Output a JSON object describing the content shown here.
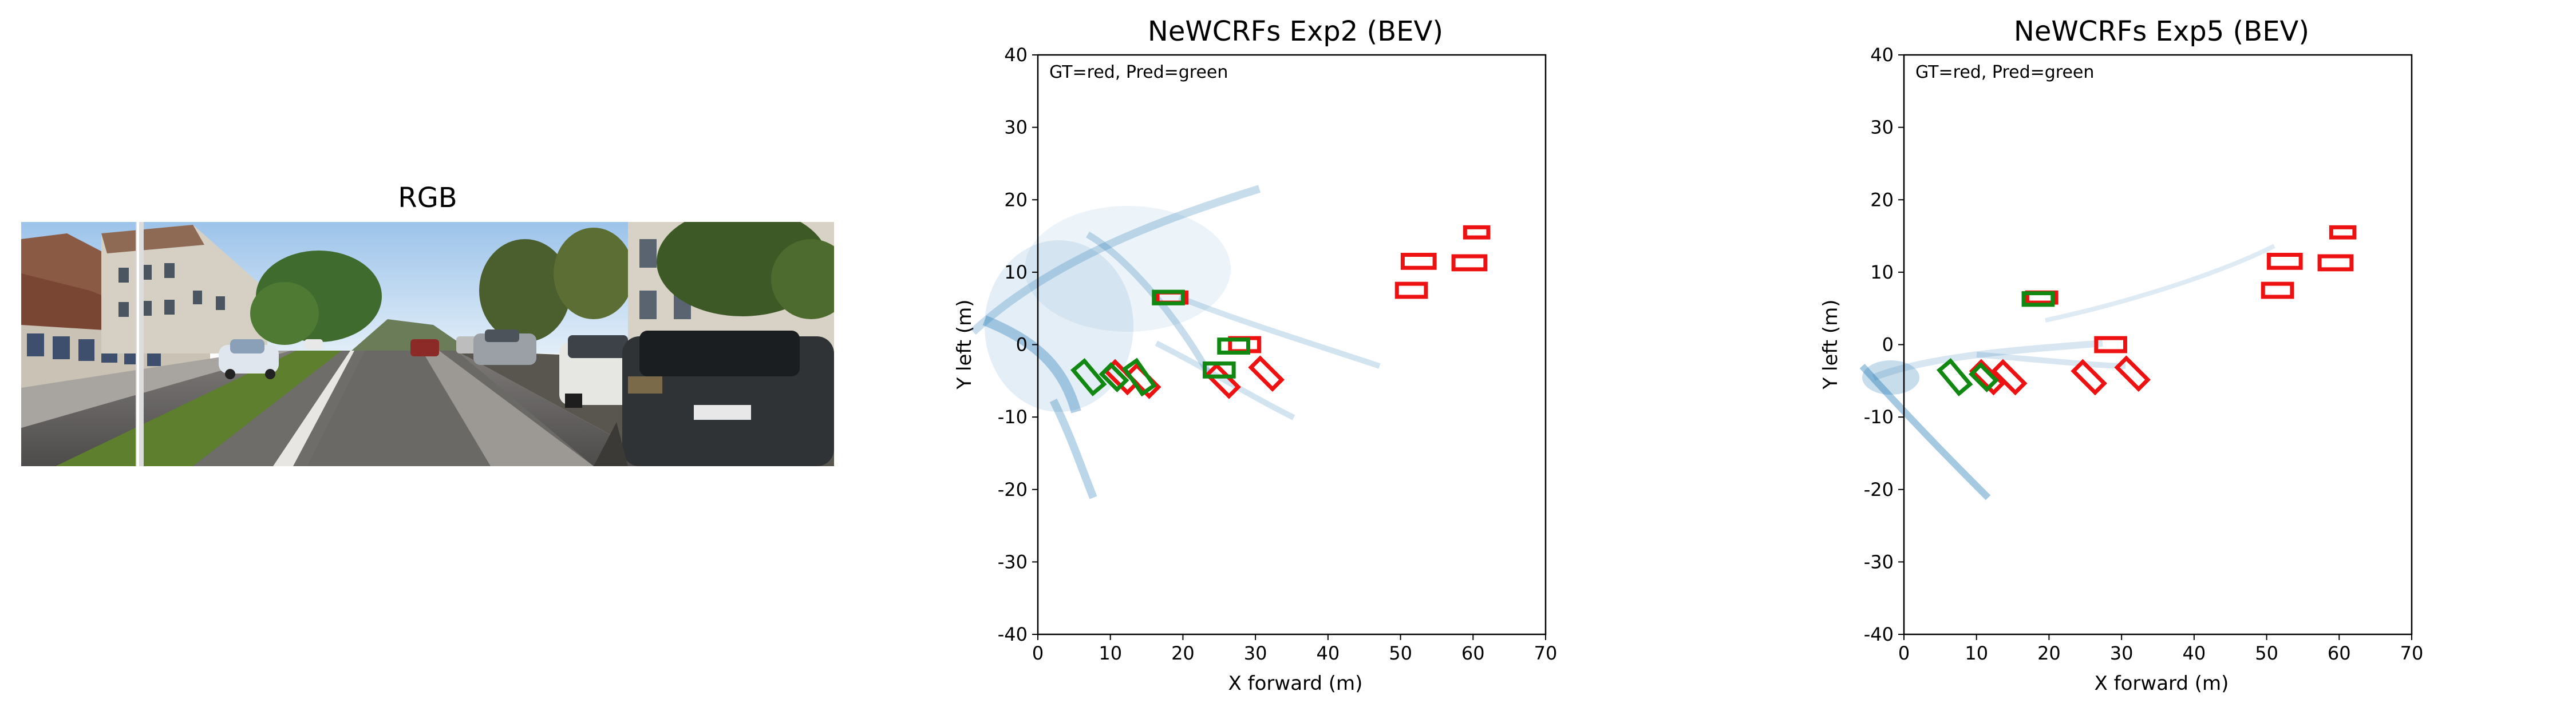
{
  "rgb_panel": {
    "title": "RGB"
  },
  "chart_data": [
    {
      "type": "scatter",
      "title": "NeWCRFs Exp2 (BEV)",
      "xlabel": "X forward (m)",
      "ylabel": "Y left (m)",
      "xlim": [
        0,
        70
      ],
      "ylim": [
        -40,
        40
      ],
      "xticks": [
        0,
        10,
        20,
        30,
        40,
        50,
        60,
        70
      ],
      "yticks": [
        -40,
        -30,
        -20,
        -10,
        0,
        10,
        20,
        30,
        40
      ],
      "annotation": "GT=red, Pred=green",
      "colors": {
        "gt": "#ee1111",
        "pred": "#118811",
        "points": "#1f77b4"
      },
      "gt_boxes": [
        {
          "x": 60.5,
          "y": 15.5,
          "l": 3.2,
          "w": 1.4,
          "angle": 0
        },
        {
          "x": 52.5,
          "y": 11.5,
          "l": 4.4,
          "w": 1.8,
          "angle": 0
        },
        {
          "x": 59.5,
          "y": 11.3,
          "l": 4.4,
          "w": 1.8,
          "angle": 0
        },
        {
          "x": 51.5,
          "y": 7.5,
          "l": 4.0,
          "w": 1.8,
          "angle": 0
        },
        {
          "x": 18.5,
          "y": 6.5,
          "l": 4.0,
          "w": 1.4,
          "angle": 0
        },
        {
          "x": 28.5,
          "y": 0.0,
          "l": 4.0,
          "w": 1.8,
          "angle": 0
        },
        {
          "x": 25.5,
          "y": -5.0,
          "l": 4.2,
          "w": 1.8,
          "angle": -45
        },
        {
          "x": 31.5,
          "y": -4.0,
          "l": 4.2,
          "w": 1.8,
          "angle": -45
        },
        {
          "x": 11.5,
          "y": -4.5,
          "l": 4.2,
          "w": 1.8,
          "angle": -45
        },
        {
          "x": 14.5,
          "y": -5.0,
          "l": 4.2,
          "w": 1.8,
          "angle": -45
        }
      ],
      "pred_boxes": [
        {
          "x": 18.0,
          "y": 6.5,
          "l": 4.0,
          "w": 1.6,
          "angle": 0
        },
        {
          "x": 27.0,
          "y": -0.2,
          "l": 4.0,
          "w": 1.8,
          "angle": 0
        },
        {
          "x": 25.0,
          "y": -3.5,
          "l": 4.0,
          "w": 1.8,
          "angle": 0
        },
        {
          "x": 7.0,
          "y": -4.5,
          "l": 4.2,
          "w": 2.0,
          "angle": -50
        },
        {
          "x": 10.5,
          "y": -4.5,
          "l": 3.0,
          "w": 1.8,
          "angle": -45
        },
        {
          "x": 14.0,
          "y": -4.5,
          "l": 4.2,
          "w": 2.0,
          "angle": -55
        }
      ]
    },
    {
      "type": "scatter",
      "title": "NeWCRFs Exp5 (BEV)",
      "xlabel": "X forward (m)",
      "ylabel": "Y left (m)",
      "xlim": [
        0,
        70
      ],
      "ylim": [
        -40,
        40
      ],
      "xticks": [
        0,
        10,
        20,
        30,
        40,
        50,
        60,
        70
      ],
      "yticks": [
        -40,
        -30,
        -20,
        -10,
        0,
        10,
        20,
        30,
        40
      ],
      "annotation": "GT=red, Pred=green",
      "colors": {
        "gt": "#ee1111",
        "pred": "#118811",
        "points": "#1f77b4"
      },
      "gt_boxes": [
        {
          "x": 60.5,
          "y": 15.5,
          "l": 3.2,
          "w": 1.4,
          "angle": 0
        },
        {
          "x": 52.5,
          "y": 11.5,
          "l": 4.4,
          "w": 1.8,
          "angle": 0
        },
        {
          "x": 59.5,
          "y": 11.3,
          "l": 4.4,
          "w": 1.8,
          "angle": 0
        },
        {
          "x": 51.5,
          "y": 7.5,
          "l": 4.0,
          "w": 1.8,
          "angle": 0
        },
        {
          "x": 19.0,
          "y": 6.5,
          "l": 4.0,
          "w": 1.4,
          "angle": 0
        },
        {
          "x": 28.5,
          "y": 0.0,
          "l": 4.0,
          "w": 1.8,
          "angle": 0
        },
        {
          "x": 25.5,
          "y": -4.5,
          "l": 4.2,
          "w": 1.8,
          "angle": -45
        },
        {
          "x": 31.5,
          "y": -4.0,
          "l": 4.2,
          "w": 1.8,
          "angle": -45
        },
        {
          "x": 11.5,
          "y": -4.5,
          "l": 4.2,
          "w": 1.8,
          "angle": -45
        },
        {
          "x": 14.5,
          "y": -4.5,
          "l": 4.2,
          "w": 1.8,
          "angle": -45
        }
      ],
      "pred_boxes": [
        {
          "x": 18.5,
          "y": 6.3,
          "l": 4.0,
          "w": 1.6,
          "angle": 0
        },
        {
          "x": 7.0,
          "y": -4.5,
          "l": 4.2,
          "w": 2.0,
          "angle": -50
        },
        {
          "x": 11.0,
          "y": -4.5,
          "l": 3.0,
          "w": 1.8,
          "angle": -45
        }
      ]
    }
  ]
}
